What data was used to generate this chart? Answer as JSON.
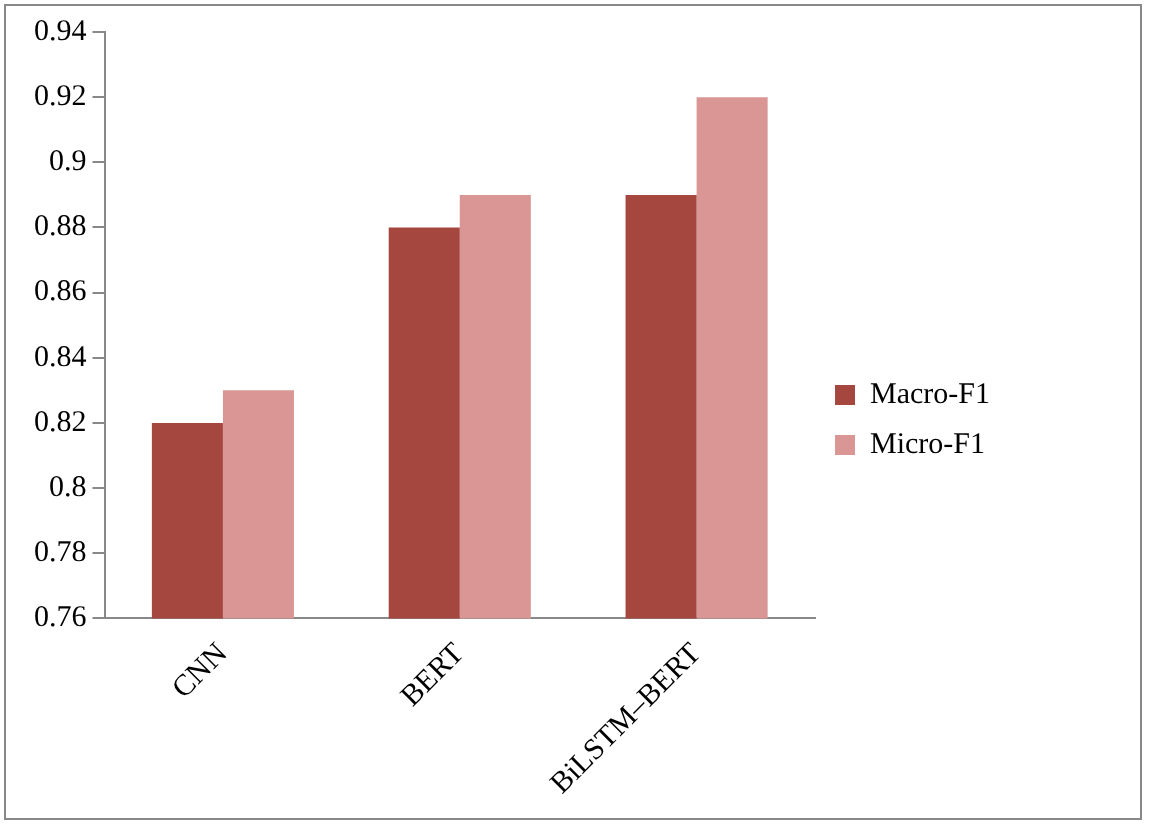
{
  "chart_data": {
    "type": "bar",
    "categories": [
      "CNN",
      "BERT",
      "BiLSTM–BERT"
    ],
    "series": [
      {
        "name": "Macro-F1",
        "color": "#a5463f",
        "values": [
          0.82,
          0.88,
          0.89
        ]
      },
      {
        "name": "Micro-F1",
        "color": "#d99694",
        "values": [
          0.83,
          0.89,
          0.92
        ]
      }
    ],
    "ylim": [
      0.76,
      0.94
    ],
    "yticks": [
      0.76,
      0.78,
      0.8,
      0.82,
      0.84,
      0.86,
      0.88,
      0.9,
      0.92,
      0.94
    ],
    "grid": false,
    "legend": "right"
  }
}
